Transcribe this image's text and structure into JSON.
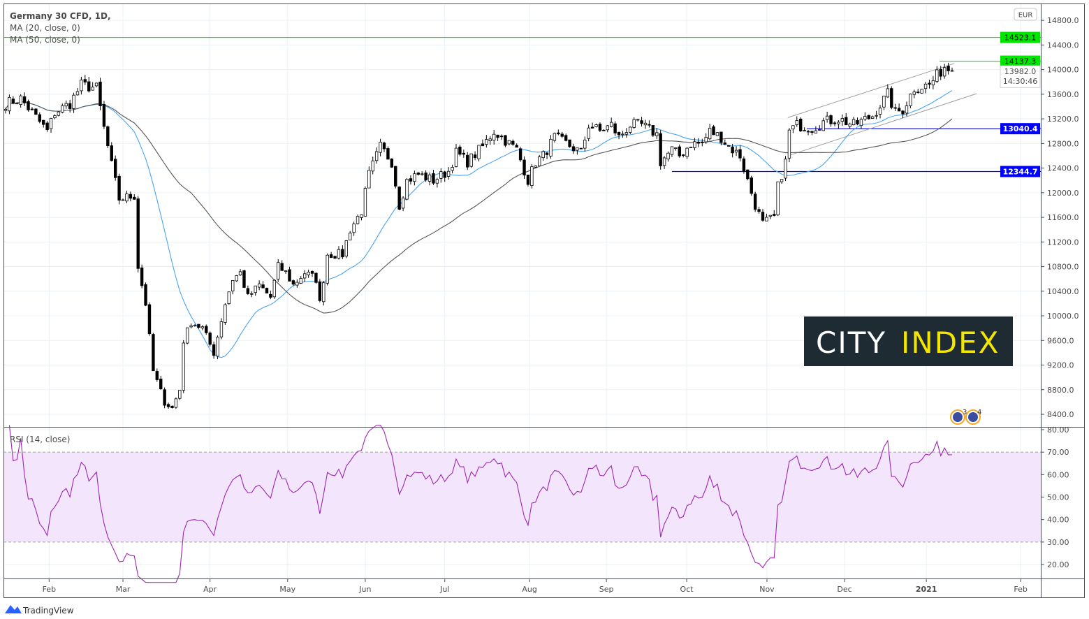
{
  "chart_data": {
    "type": "candlestick",
    "title": "Germany 30 CFD, 1D,",
    "indicators": [
      "MA (20, close, 0)",
      "MA (50, close, 0)"
    ],
    "ma_colors": {
      "ma20": "#4aa3f0",
      "ma50": "#555555"
    },
    "currency": "EUR",
    "ylim": [
      8200,
      14900
    ],
    "price_ticks": [
      8400,
      8800,
      9200,
      9600,
      10000,
      10400,
      10800,
      11200,
      11600,
      12000,
      12400,
      12800,
      13200,
      13600,
      14000,
      14400,
      14800
    ],
    "x_ticks": [
      {
        "label": "Feb",
        "bar": 11.5
      },
      {
        "label": "Mar",
        "bar": 31
      },
      {
        "label": "Apr",
        "bar": 54
      },
      {
        "label": "May",
        "bar": 74.5
      },
      {
        "label": "Jun",
        "bar": 95
      },
      {
        "label": "Jul",
        "bar": 116
      },
      {
        "label": "Aug",
        "bar": 138.4
      },
      {
        "label": "Sep",
        "bar": 158.7
      },
      {
        "label": "Oct",
        "bar": 179.9
      },
      {
        "label": "Nov",
        "bar": 201.1
      },
      {
        "label": "Dec",
        "bar": 221.6
      },
      {
        "label": "2021",
        "bar": 243.2
      },
      {
        "label": "Feb",
        "bar": 268.1
      }
    ],
    "close_path": [
      [
        0,
        13450
      ],
      [
        4,
        13530
      ],
      [
        7,
        13300
      ],
      [
        11,
        13000
      ],
      [
        13,
        13300
      ],
      [
        17,
        13450
      ],
      [
        20,
        13750
      ],
      [
        24,
        13700
      ],
      [
        26,
        13050
      ],
      [
        28,
        12450
      ],
      [
        30,
        11900
      ],
      [
        34,
        11950
      ],
      [
        35,
        10800
      ],
      [
        37,
        10200
      ],
      [
        39,
        9100
      ],
      [
        42,
        8600
      ],
      [
        44,
        8500
      ],
      [
        46,
        8800
      ],
      [
        47,
        9600
      ],
      [
        49,
        9900
      ],
      [
        52,
        9800
      ],
      [
        55,
        9400
      ],
      [
        58,
        10200
      ],
      [
        60,
        10600
      ],
      [
        62,
        10700
      ],
      [
        64,
        10300
      ],
      [
        67,
        10500
      ],
      [
        70,
        10300
      ],
      [
        72,
        10800
      ],
      [
        74,
        10700
      ],
      [
        76,
        10500
      ],
      [
        79,
        10700
      ],
      [
        82,
        10600
      ],
      [
        83,
        10200
      ],
      [
        85,
        11000
      ],
      [
        89,
        11000
      ],
      [
        91,
        11400
      ],
      [
        94,
        11700
      ],
      [
        96,
        12300
      ],
      [
        99,
        12750
      ],
      [
        102,
        12500
      ],
      [
        104,
        11800
      ],
      [
        106,
        12200
      ],
      [
        109,
        12300
      ],
      [
        113,
        12200
      ],
      [
        117,
        12350
      ],
      [
        119,
        12650
      ],
      [
        122,
        12500
      ],
      [
        126,
        12750
      ],
      [
        129,
        13000
      ],
      [
        131,
        12900
      ],
      [
        135,
        12700
      ],
      [
        138,
        12200
      ],
      [
        140,
        12500
      ],
      [
        142,
        12600
      ],
      [
        145,
        12900
      ],
      [
        148,
        12800
      ],
      [
        152,
        12650
      ],
      [
        154,
        13100
      ],
      [
        157,
        13000
      ],
      [
        160,
        13100
      ],
      [
        162,
        12900
      ],
      [
        165,
        13100
      ],
      [
        168,
        13100
      ],
      [
        172,
        12950
      ],
      [
        173,
        12500
      ],
      [
        176,
        12700
      ],
      [
        178,
        12600
      ],
      [
        181,
        12800
      ],
      [
        184,
        12800
      ],
      [
        186,
        13000
      ],
      [
        189,
        12900
      ],
      [
        191,
        12750
      ],
      [
        194,
        12600
      ],
      [
        196,
        12200
      ],
      [
        198,
        11800
      ],
      [
        200,
        11500
      ],
      [
        203,
        11600
      ],
      [
        204,
        12100
      ],
      [
        206,
        12500
      ],
      [
        207,
        13000
      ],
      [
        209,
        13100
      ],
      [
        213,
        13050
      ],
      [
        216,
        13150
      ],
      [
        220,
        13200
      ],
      [
        224,
        13100
      ],
      [
        229,
        13250
      ],
      [
        233,
        13600
      ],
      [
        235,
        13300
      ],
      [
        237,
        13350
      ],
      [
        240,
        13700
      ],
      [
        244,
        13750
      ],
      [
        246,
        13900
      ],
      [
        248,
        14050
      ],
      [
        250,
        13982
      ]
    ],
    "last_price": "13982.0",
    "countdown": "14:30:46",
    "horizontal_levels": [
      {
        "price": "14523.1",
        "value": 14523.1,
        "color": "#00e600",
        "from_bar": -2
      },
      {
        "price": "14137.3",
        "value": 14137.3,
        "color": "#00e600",
        "from_bar": 246.7
      },
      {
        "price": "13040.4",
        "value": 13040.4,
        "color": "#0000ff",
        "from_bar": 211.6
      },
      {
        "price": "12344.7",
        "value": 12344.7,
        "color": "#0000ff",
        "from_bar": 176
      }
    ],
    "trend_lines": [
      {
        "from": [
          206.6,
          13220
        ],
        "to": [
          250.6,
          14100
        ],
        "color": "#9e9e9e"
      },
      {
        "from": [
          206.6,
          12600
        ],
        "to": [
          256.5,
          13610
        ],
        "color": "#9e9e9e"
      }
    ],
    "rsi": {
      "label": "RSI (14, close)",
      "period": 14,
      "color": "#9c27b0",
      "band": [
        30,
        70
      ],
      "band_color": "#f3e5fc",
      "ticks": [
        "80.00",
        "70.00",
        "60.00",
        "50.00",
        "40.00",
        "30.00",
        "20.00"
      ]
    },
    "events": [
      {
        "count": "3"
      },
      {
        "count": "4"
      }
    ]
  },
  "watermark": {
    "word1": "CITY",
    "word2": "INDEX"
  },
  "footer": {
    "brand": "TradingView"
  }
}
